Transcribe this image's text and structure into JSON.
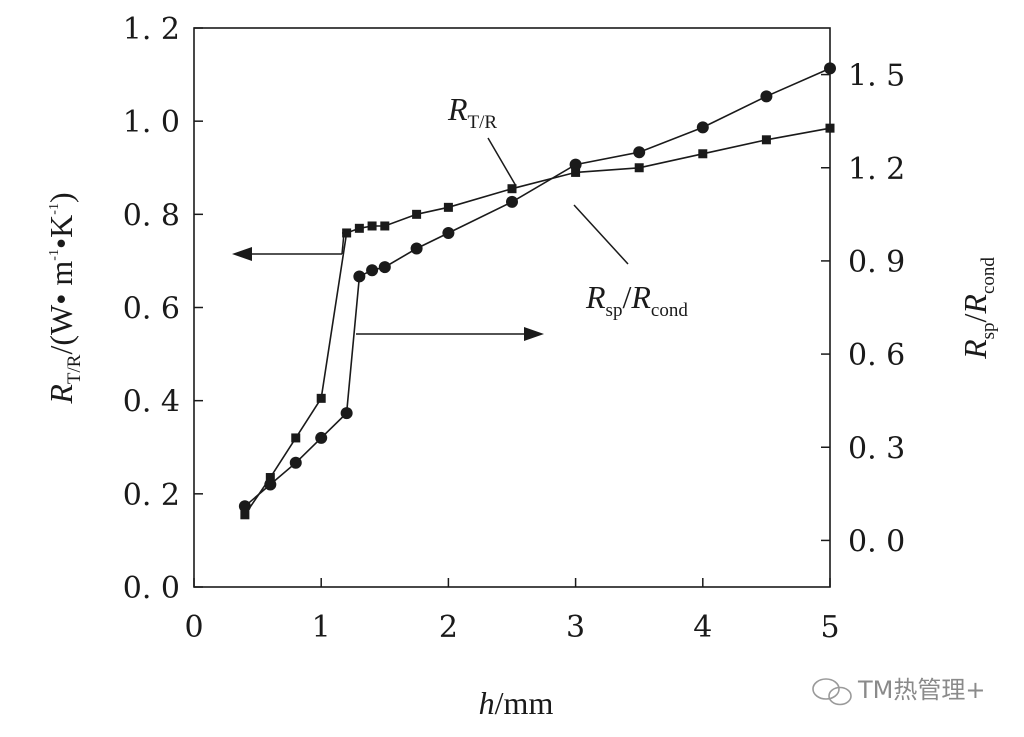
{
  "chart_data": {
    "type": "line",
    "x": [
      0.4,
      0.6,
      0.8,
      1.0,
      1.2,
      1.3,
      1.4,
      1.5,
      1.75,
      2.0,
      2.5,
      3.0,
      3.5,
      4.0,
      4.5,
      5.0
    ],
    "xlim": [
      0,
      5
    ],
    "xticks": [
      "0",
      "1",
      "2",
      "3",
      "4",
      "5"
    ],
    "xlabel": {
      "var": "h",
      "unit": "/mm"
    },
    "left_axis": {
      "ylim": [
        0,
        1.2
      ],
      "ticks": [
        "0. 0",
        "0. 2",
        "0. 4",
        "0. 6",
        "0. 8",
        "1. 0",
        "1. 2"
      ],
      "label": {
        "var": "R",
        "sub": "T/R",
        "unit": "/(W• m",
        "sup1": "-1",
        "dot": "•K",
        "sup2": "-1",
        "close": ")"
      }
    },
    "right_axis": {
      "ylim": [
        -0.15,
        1.65
      ],
      "ticks": [
        "0. 0",
        "0. 3",
        "0. 6",
        "0. 9",
        "1. 2",
        "1. 5"
      ],
      "label": {
        "var1": "R",
        "sub1": "sp",
        "slash": "/",
        "var2": "R",
        "sub2": "cond"
      }
    },
    "series": [
      {
        "name": {
          "var": "R",
          "sub": "T/R"
        },
        "axis": "left",
        "marker": "square",
        "x": [
          0.4,
          0.6,
          0.8,
          1.0,
          1.2,
          1.3,
          1.4,
          1.5,
          1.75,
          2.0,
          2.5,
          3.0,
          3.5,
          4.0,
          4.5,
          5.0
        ],
        "values": [
          0.155,
          0.235,
          0.32,
          0.405,
          0.76,
          0.77,
          0.775,
          0.775,
          0.8,
          0.815,
          0.855,
          0.89,
          0.9,
          0.93,
          0.96,
          0.985
        ]
      },
      {
        "name": {
          "var1": "R",
          "sub1": "sp",
          "slash": "/",
          "var2": "R",
          "sub2": "cond"
        },
        "axis": "right",
        "marker": "circle",
        "x": [
          0.4,
          0.6,
          0.8,
          1.0,
          1.2,
          1.3,
          1.4,
          1.5,
          1.75,
          2.0,
          2.5,
          3.0,
          3.5,
          4.0,
          4.5,
          5.0
        ],
        "values": [
          0.11,
          0.18,
          0.25,
          0.33,
          0.41,
          0.85,
          0.87,
          0.88,
          0.94,
          0.99,
          1.09,
          1.21,
          1.25,
          1.33,
          1.43,
          1.52
        ]
      }
    ],
    "grid": false
  },
  "watermark": "TM热管理+",
  "colors": {
    "ink": "#1a1a1a",
    "background": "#ffffff",
    "watermark": "#8a8a8a"
  }
}
